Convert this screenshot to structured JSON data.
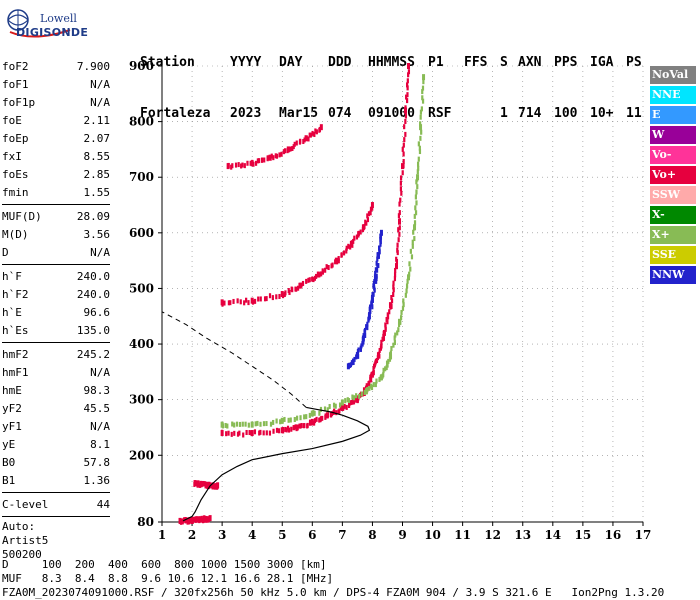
{
  "logo": {
    "top": "Lowell",
    "main": "DIGISONDE"
  },
  "header": {
    "row1": [
      "Station",
      "YYYY",
      "DAY",
      "DDD",
      "HHMMSS",
      "P1",
      "FFS",
      "S",
      "AXN",
      "PPS",
      "IGA",
      "PS"
    ],
    "row2": [
      "Fortaleza",
      "2023",
      "Mar15",
      "074",
      "091000",
      "RSF",
      "",
      "1",
      "714",
      "100",
      "10+",
      "11"
    ]
  },
  "params": {
    "group1": [
      {
        "name": "foF2",
        "value": "7.900"
      },
      {
        "name": "foF1",
        "value": "N/A"
      },
      {
        "name": "foF1p",
        "value": "N/A"
      },
      {
        "name": "foE",
        "value": "2.11"
      },
      {
        "name": "foEp",
        "value": "2.07"
      },
      {
        "name": "fxI",
        "value": "8.55"
      },
      {
        "name": "foEs",
        "value": "2.85"
      },
      {
        "name": "fmin",
        "value": "1.55"
      }
    ],
    "group2": [
      {
        "name": "MUF(D)",
        "value": "28.09"
      },
      {
        "name": "M(D)",
        "value": "3.56"
      },
      {
        "name": "D",
        "value": "N/A"
      }
    ],
    "group3": [
      {
        "name": "h`F",
        "value": "240.0"
      },
      {
        "name": "h`F2",
        "value": "240.0"
      },
      {
        "name": "h`E",
        "value": "96.6"
      },
      {
        "name": "h`Es",
        "value": "135.0"
      }
    ],
    "group4": [
      {
        "name": "hmF2",
        "value": "245.2"
      },
      {
        "name": "hmF1",
        "value": "N/A"
      },
      {
        "name": "hmE",
        "value": "98.3"
      },
      {
        "name": "yF2",
        "value": "45.5"
      },
      {
        "name": "yF1",
        "value": "N/A"
      },
      {
        "name": "yE",
        "value": "8.1"
      },
      {
        "name": "B0",
        "value": "57.8"
      },
      {
        "name": "B1",
        "value": "1.36"
      }
    ],
    "group5": [
      {
        "name": "C-level",
        "value": "44"
      }
    ],
    "auto": [
      "Auto:",
      "Artist5",
      "500200"
    ]
  },
  "legend": [
    {
      "label": "NoVal",
      "bg": "#808080",
      "fg": "#ffffff"
    },
    {
      "label": "NNE",
      "bg": "#00e5ff",
      "fg": "#ffffff"
    },
    {
      "label": "E",
      "bg": "#3399ff",
      "fg": "#ffffff"
    },
    {
      "label": "W",
      "bg": "#990099",
      "fg": "#ffffff"
    },
    {
      "label": "Vo-",
      "bg": "#ff3399",
      "fg": "#ffffff"
    },
    {
      "label": "Vo+",
      "bg": "#e6003e",
      "fg": "#ffffff"
    },
    {
      "label": "SSW",
      "bg": "#ffaaaa",
      "fg": "#ffffff"
    },
    {
      "label": "X-",
      "bg": "#008800",
      "fg": "#ffffff"
    },
    {
      "label": "X+",
      "bg": "#88bb55",
      "fg": "#ffffff"
    },
    {
      "label": "SSE",
      "bg": "#cccc00",
      "fg": "#ffffff"
    },
    {
      "label": "NNW",
      "bg": "#2222cc",
      "fg": "#ffffff"
    }
  ],
  "footer": {
    "line1": "D     100  200  400  600  800 1000 1500 3000 [km]",
    "line2": "MUF   8.3  8.4  8.8  9.6 10.6 12.1 16.6 28.1 [MHz]",
    "line3": "FZA0M_2023074091000.RSF / 320fx256h 50 kHz 5.0 km / DPS-4 FZA0M 904 / 3.9 S 321.6 E   Ion2Png 1.3.20"
  },
  "chart_data": {
    "type": "scatter",
    "xlim": [
      1,
      17
    ],
    "ylim": [
      80,
      900
    ],
    "x_ticks": [
      1,
      2,
      3,
      4,
      5,
      6,
      7,
      8,
      9,
      10,
      11,
      12,
      13,
      14,
      15,
      16,
      17
    ],
    "y_ticks": [
      80,
      200,
      300,
      400,
      500,
      600,
      700,
      800,
      900
    ],
    "traces": [
      {
        "name": "E-layer echoes",
        "color": "#e6003e",
        "points": [
          [
            1.6,
            82
          ],
          [
            1.8,
            83
          ],
          [
            2.0,
            84
          ],
          [
            2.2,
            85
          ],
          [
            2.4,
            86
          ],
          [
            2.6,
            87
          ]
        ]
      },
      {
        "name": "Es echoes",
        "color": "#e6003e",
        "points": [
          [
            2.1,
            150
          ],
          [
            2.3,
            148
          ],
          [
            2.5,
            147
          ],
          [
            2.7,
            146
          ],
          [
            2.85,
            146
          ]
        ]
      },
      {
        "name": "F2 first hop O",
        "color": "#e6003e",
        "points": [
          [
            3.0,
            240
          ],
          [
            4.0,
            240
          ],
          [
            5.0,
            245
          ],
          [
            5.5,
            250
          ],
          [
            6.0,
            260
          ],
          [
            6.5,
            272
          ],
          [
            7.0,
            285
          ],
          [
            7.5,
            300
          ],
          [
            7.8,
            320
          ],
          [
            8.0,
            345
          ],
          [
            8.2,
            380
          ],
          [
            8.4,
            420
          ],
          [
            8.6,
            470
          ],
          [
            8.8,
            540
          ],
          [
            8.9,
            620
          ],
          [
            9.0,
            720
          ],
          [
            9.1,
            820
          ],
          [
            9.2,
            900
          ]
        ]
      },
      {
        "name": "F2 first hop X",
        "color": "#88bb55",
        "points": [
          [
            3.0,
            255
          ],
          [
            4.0,
            255
          ],
          [
            5.0,
            262
          ],
          [
            6.0,
            275
          ],
          [
            7.0,
            295
          ],
          [
            7.8,
            315
          ],
          [
            8.3,
            340
          ],
          [
            8.6,
            380
          ],
          [
            8.9,
            440
          ],
          [
            9.2,
            520
          ],
          [
            9.4,
            610
          ],
          [
            9.5,
            700
          ],
          [
            9.6,
            790
          ],
          [
            9.7,
            880
          ]
        ]
      },
      {
        "name": "F2 second hop",
        "color": "#e6003e",
        "points": [
          [
            3.0,
            475
          ],
          [
            4.0,
            478
          ],
          [
            5.0,
            490
          ],
          [
            5.6,
            505
          ],
          [
            6.2,
            525
          ],
          [
            6.8,
            550
          ],
          [
            7.3,
            580
          ],
          [
            7.7,
            610
          ],
          [
            8.0,
            650
          ]
        ]
      },
      {
        "name": "F2 third hop",
        "color": "#e6003e",
        "points": [
          [
            3.2,
            720
          ],
          [
            4.0,
            725
          ],
          [
            4.6,
            735
          ],
          [
            5.2,
            750
          ],
          [
            5.8,
            770
          ],
          [
            6.3,
            790
          ]
        ]
      },
      {
        "name": "Oblique echoes",
        "color": "#2222cc",
        "points": [
          [
            7.2,
            360
          ],
          [
            7.5,
            380
          ],
          [
            7.7,
            410
          ],
          [
            7.9,
            450
          ],
          [
            8.0,
            480
          ],
          [
            8.1,
            520
          ],
          [
            8.2,
            560
          ],
          [
            8.3,
            600
          ]
        ]
      }
    ],
    "profile": {
      "name": "Electron density profile",
      "points": [
        [
          1.7,
          82
        ],
        [
          2.0,
          90
        ],
        [
          2.1,
          98
        ],
        [
          2.3,
          120
        ],
        [
          2.6,
          145
        ],
        [
          3.0,
          165
        ],
        [
          3.5,
          180
        ],
        [
          4.0,
          192
        ],
        [
          5.0,
          203
        ],
        [
          6.0,
          212
        ],
        [
          7.0,
          225
        ],
        [
          7.6,
          236
        ],
        [
          7.9,
          245
        ],
        [
          7.85,
          252
        ],
        [
          7.5,
          262
        ],
        [
          7.0,
          272
        ],
        [
          6.6,
          278
        ],
        [
          6.2,
          282
        ],
        [
          5.8,
          286
        ]
      ]
    },
    "profile_extrapolation": {
      "name": "Topside extrapolation",
      "points": [
        [
          5.8,
          286
        ],
        [
          5.3,
          310
        ],
        [
          4.7,
          335
        ],
        [
          4.0,
          360
        ],
        [
          3.3,
          385
        ],
        [
          2.5,
          410
        ],
        [
          1.8,
          435
        ],
        [
          1.0,
          458
        ]
      ]
    }
  }
}
